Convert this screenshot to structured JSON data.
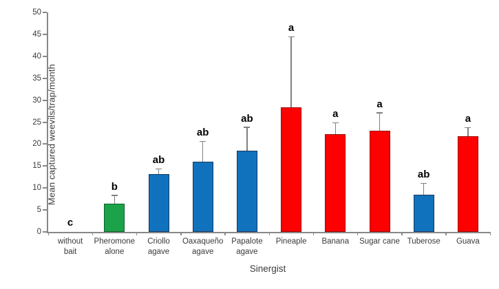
{
  "chart_data": {
    "type": "bar",
    "title": "",
    "xlabel": "Sinergist",
    "ylabel": "Mean captured weevils/trap/month",
    "ylim": [
      0,
      50
    ],
    "ytick_step": 5,
    "ytick_labels": [
      "0",
      "5",
      "10",
      "15",
      "20",
      "25",
      "30",
      "35",
      "40",
      "45",
      "50"
    ],
    "grid": false,
    "legend": null,
    "categories": [
      "without bait",
      "Pheromone alone",
      "Criollo agave",
      "Oaxaqueño agave",
      "Papalote agave",
      "Pineaple",
      "Banana",
      "Sugar cane",
      "Tuberose",
      "Guava"
    ],
    "category_label_lines": [
      [
        "without",
        "bait"
      ],
      [
        "Pheromone",
        "alone"
      ],
      [
        "Criollo",
        "agave"
      ],
      [
        "Oaxaqueño",
        "agave"
      ],
      [
        "Papalote",
        "agave"
      ],
      [
        "Pineaple"
      ],
      [
        "Banana"
      ],
      [
        "Sugar cane"
      ],
      [
        "Tuberose"
      ],
      [
        "Guava"
      ]
    ],
    "values": [
      0,
      6.5,
      13.2,
      16.0,
      18.5,
      28.3,
      22.3,
      23.0,
      8.5,
      21.8
    ],
    "error_upper": [
      0,
      1.7,
      1.0,
      4.5,
      5.2,
      16.0,
      2.4,
      4.0,
      2.4,
      1.8
    ],
    "sig_letters": [
      "c",
      "b",
      "ab",
      "ab",
      "ab",
      "a",
      "a",
      "a",
      "ab",
      "a"
    ],
    "bar_fill_colors": [
      "none",
      "#1ca349",
      "#1072bc",
      "#1072bc",
      "#1072bc",
      "#fe0000",
      "#fe0000",
      "#fe0000",
      "#1072bc",
      "#fe0000"
    ],
    "bar_border_colors": [
      "none",
      "#0b5e2a",
      "#17375e",
      "#17375e",
      "#17375e",
      "#9b0000",
      "#9b0000",
      "#9b0000",
      "#17375e",
      "#9b0000"
    ]
  },
  "colors": {
    "axis": "#878787",
    "error_bar": "#7f7f7f",
    "tick_text": "#3a3a3a",
    "sig_letter_text": "#000000",
    "background": "#ffffff"
  }
}
